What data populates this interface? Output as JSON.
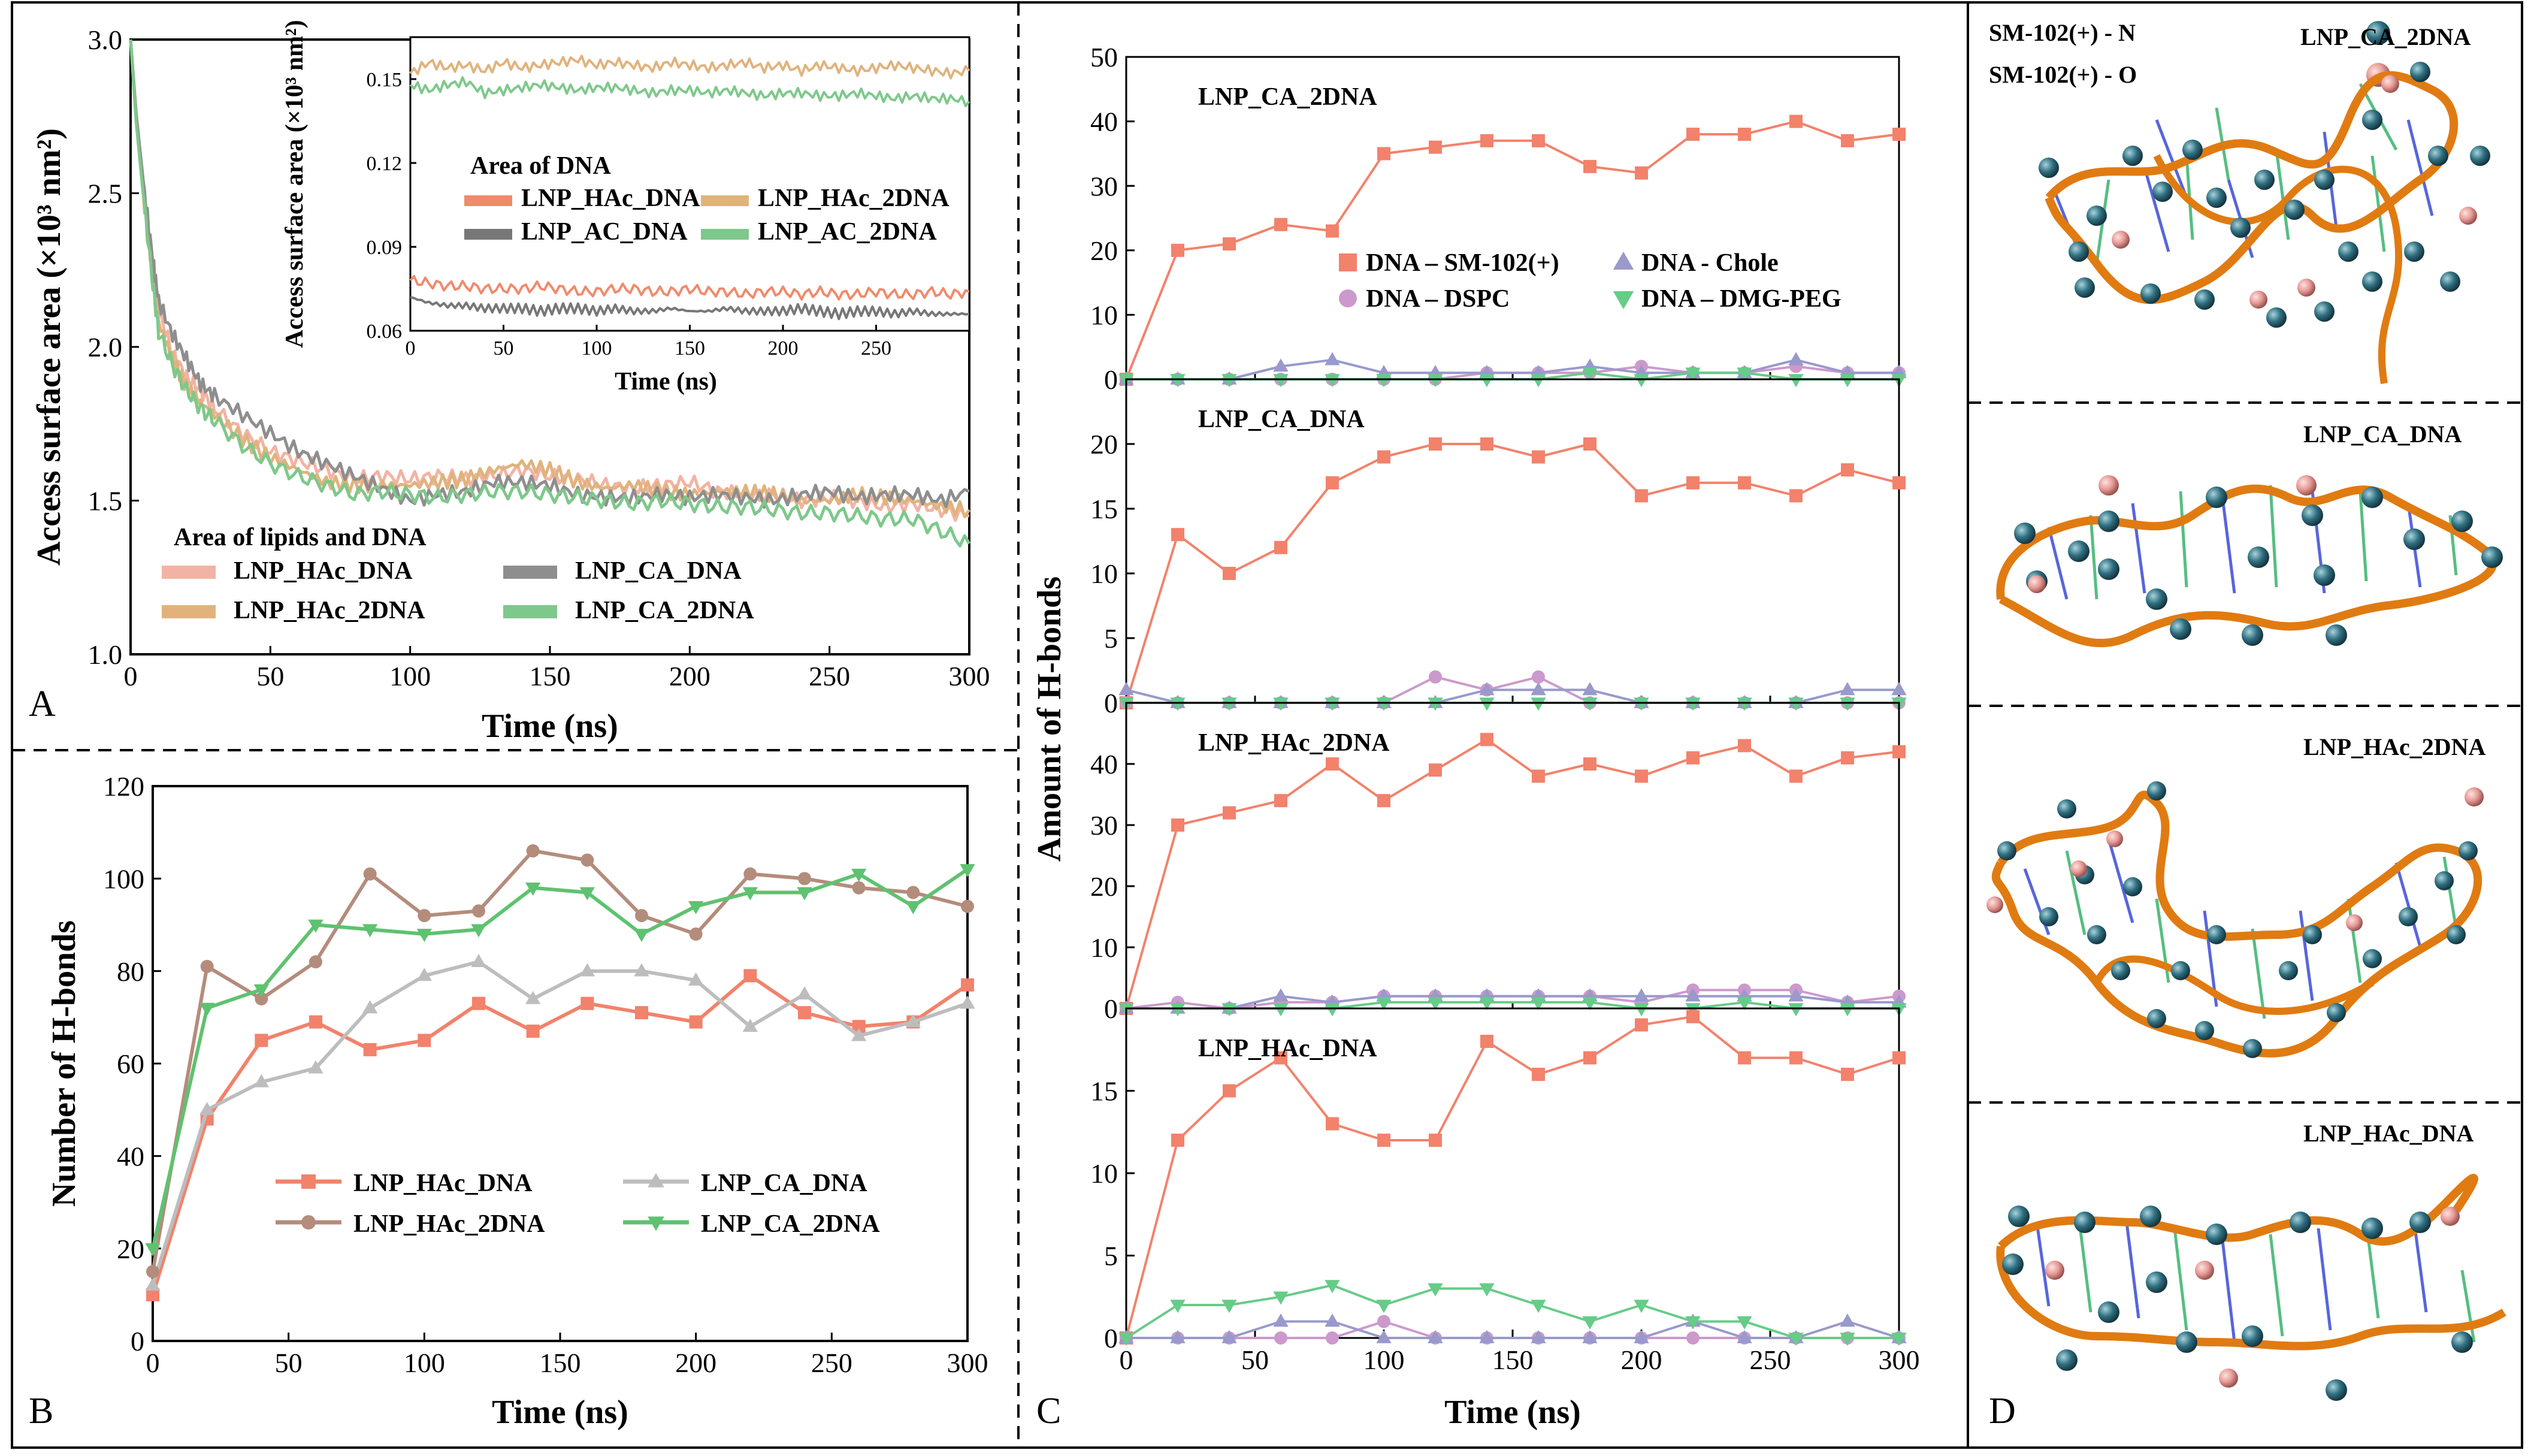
{
  "figure": {
    "panel_letters": [
      "A",
      "B",
      "C",
      "D"
    ]
  },
  "chart_data": [
    {
      "id": "A",
      "type": "line",
      "xlabel": "Time (ns)",
      "ylabel": "Access surface area (×10³ nm²)",
      "xlim": [
        0,
        300
      ],
      "ylim": [
        1.0,
        3.0
      ],
      "xticks": [
        0,
        50,
        100,
        150,
        200,
        250,
        300
      ],
      "yticks": [
        1.0,
        1.5,
        2.0,
        2.5,
        3.0
      ],
      "legend_title": "Area of lipids and DNA",
      "x": [
        0,
        2,
        5,
        8,
        10,
        15,
        20,
        25,
        30,
        40,
        50,
        60,
        70,
        80,
        90,
        100,
        110,
        120,
        130,
        140,
        150,
        160,
        170,
        180,
        190,
        200,
        210,
        220,
        230,
        240,
        250,
        260,
        270,
        280,
        290,
        300
      ],
      "series": [
        {
          "name": "LNP_HAc_DNA",
          "color": "#f2b3a4",
          "values": [
            3.0,
            2.75,
            2.48,
            2.25,
            2.12,
            1.98,
            1.9,
            1.86,
            1.8,
            1.72,
            1.66,
            1.63,
            1.6,
            1.57,
            1.58,
            1.57,
            1.58,
            1.57,
            1.58,
            1.6,
            1.58,
            1.57,
            1.55,
            1.54,
            1.55,
            1.56,
            1.53,
            1.52,
            1.52,
            1.5,
            1.51,
            1.5,
            1.48,
            1.49,
            1.47,
            1.45
          ]
        },
        {
          "name": "LNP_HAc_2DNA",
          "color": "#e0b37d",
          "values": [
            3.0,
            2.74,
            2.46,
            2.22,
            2.08,
            1.96,
            1.87,
            1.82,
            1.78,
            1.7,
            1.64,
            1.6,
            1.56,
            1.55,
            1.55,
            1.55,
            1.56,
            1.57,
            1.6,
            1.62,
            1.6,
            1.56,
            1.54,
            1.55,
            1.53,
            1.52,
            1.53,
            1.53,
            1.52,
            1.5,
            1.5,
            1.52,
            1.51,
            1.5,
            1.48,
            1.47
          ]
        },
        {
          "name": "LNP_CA_DNA",
          "color": "#8e8e8e",
          "values": [
            3.0,
            2.76,
            2.5,
            2.28,
            2.15,
            2.04,
            1.96,
            1.88,
            1.84,
            1.78,
            1.72,
            1.66,
            1.62,
            1.58,
            1.54,
            1.5,
            1.52,
            1.53,
            1.56,
            1.56,
            1.55,
            1.52,
            1.51,
            1.51,
            1.52,
            1.51,
            1.52,
            1.51,
            1.5,
            1.52,
            1.53,
            1.51,
            1.52,
            1.52,
            1.5,
            1.53
          ]
        },
        {
          "name": "LNP_CA_2DNA",
          "color": "#7ec88b",
          "values": [
            3.0,
            2.73,
            2.45,
            2.2,
            2.05,
            1.94,
            1.86,
            1.8,
            1.76,
            1.68,
            1.62,
            1.58,
            1.55,
            1.52,
            1.53,
            1.52,
            1.51,
            1.52,
            1.53,
            1.53,
            1.52,
            1.51,
            1.5,
            1.49,
            1.5,
            1.49,
            1.48,
            1.48,
            1.47,
            1.46,
            1.46,
            1.45,
            1.44,
            1.44,
            1.4,
            1.36
          ]
        }
      ],
      "inset": {
        "title": "Area of DNA",
        "xlabel": "Time (ns)",
        "ylabel": "Access surface area (×10³ nm²)",
        "xlim": [
          0,
          300
        ],
        "ylim": [
          0.06,
          0.165
        ],
        "xticks": [
          0,
          50,
          100,
          150,
          200,
          250
        ],
        "yticks": [
          0.06,
          0.09,
          0.12,
          0.15
        ],
        "x": [
          0,
          10,
          20,
          30,
          40,
          50,
          60,
          70,
          80,
          90,
          100,
          110,
          120,
          130,
          140,
          150,
          160,
          170,
          180,
          190,
          200,
          210,
          220,
          230,
          240,
          250,
          260,
          270,
          280,
          290,
          300
        ],
        "series": [
          {
            "name": "LNP_HAc_DNA",
            "color": "#f08a6c",
            "values": [
              0.078,
              0.077,
              0.076,
              0.076,
              0.075,
              0.075,
              0.075,
              0.076,
              0.075,
              0.074,
              0.074,
              0.075,
              0.075,
              0.074,
              0.074,
              0.075,
              0.074,
              0.074,
              0.073,
              0.074,
              0.074,
              0.073,
              0.074,
              0.073,
              0.073,
              0.074,
              0.073,
              0.073,
              0.074,
              0.073,
              0.074
            ]
          },
          {
            "name": "LNP_HAc_2DNA",
            "color": "#e0b37d",
            "values": [
              0.152,
              0.156,
              0.154,
              0.155,
              0.153,
              0.156,
              0.154,
              0.155,
              0.156,
              0.157,
              0.155,
              0.156,
              0.155,
              0.154,
              0.156,
              0.155,
              0.154,
              0.155,
              0.156,
              0.154,
              0.155,
              0.153,
              0.155,
              0.154,
              0.153,
              0.154,
              0.155,
              0.154,
              0.153,
              0.152,
              0.153
            ]
          },
          {
            "name": "LNP_AC_DNA",
            "color": "#777777",
            "values": [
              0.072,
              0.07,
              0.069,
              0.069,
              0.068,
              0.068,
              0.068,
              0.067,
              0.068,
              0.068,
              0.067,
              0.068,
              0.067,
              0.067,
              0.068,
              0.067,
              0.067,
              0.068,
              0.067,
              0.067,
              0.067,
              0.068,
              0.067,
              0.066,
              0.067,
              0.067,
              0.066,
              0.067,
              0.066,
              0.066,
              0.066
            ]
          },
          {
            "name": "LNP_AC_2DNA",
            "color": "#7ec88b",
            "values": [
              0.148,
              0.146,
              0.148,
              0.149,
              0.145,
              0.146,
              0.147,
              0.148,
              0.147,
              0.146,
              0.147,
              0.147,
              0.146,
              0.145,
              0.146,
              0.146,
              0.145,
              0.146,
              0.145,
              0.144,
              0.145,
              0.145,
              0.144,
              0.144,
              0.145,
              0.144,
              0.143,
              0.144,
              0.143,
              0.143,
              0.142
            ]
          }
        ]
      }
    },
    {
      "id": "B",
      "type": "line",
      "xlabel": "Time (ns)",
      "ylabel": "Number of H-bonds",
      "xlim": [
        0,
        300
      ],
      "ylim": [
        0,
        120
      ],
      "xticks": [
        0,
        50,
        100,
        150,
        200,
        250,
        300
      ],
      "yticks": [
        0,
        20,
        40,
        60,
        80,
        100,
        120
      ],
      "x": [
        0,
        20,
        40,
        60,
        80,
        100,
        120,
        140,
        160,
        180,
        200,
        220,
        240,
        260,
        280,
        300
      ],
      "series": [
        {
          "name": "LNP_HAc_DNA",
          "color": "#f2826b",
          "marker": "square",
          "values": [
            10,
            48,
            65,
            69,
            63,
            65,
            73,
            67,
            73,
            71,
            69,
            79,
            71,
            68,
            69,
            77
          ]
        },
        {
          "name": "LNP_CA_DNA",
          "color": "#bdbdbd",
          "marker": "triangle",
          "values": [
            12,
            50,
            56,
            59,
            72,
            79,
            82,
            74,
            80,
            80,
            78,
            68,
            75,
            66,
            69,
            73
          ]
        },
        {
          "name": "LNP_HAc_2DNA",
          "color": "#b48c7c",
          "marker": "circle",
          "values": [
            15,
            81,
            74,
            82,
            101,
            92,
            93,
            106,
            104,
            92,
            88,
            101,
            100,
            98,
            97,
            94
          ]
        },
        {
          "name": "LNP_CA_2DNA",
          "color": "#5ec270",
          "marker": "triangle-down",
          "values": [
            20,
            72,
            76,
            90,
            89,
            88,
            89,
            98,
            97,
            88,
            94,
            97,
            97,
            101,
            94,
            102
          ]
        }
      ]
    },
    {
      "id": "C",
      "type": "line",
      "xlabel": "Time (ns)",
      "ylabel": "Amount of H-bonds",
      "xlim": [
        0,
        300
      ],
      "xticks": [
        0,
        50,
        100,
        150,
        200,
        250,
        300
      ],
      "x": [
        0,
        20,
        40,
        60,
        80,
        100,
        120,
        140,
        160,
        180,
        200,
        220,
        240,
        260,
        280,
        300
      ],
      "legend": [
        "DNA – SM-102(+)",
        "DNA – DSPC",
        "DNA - Chole",
        "DNA – DMG-PEG"
      ],
      "colors": {
        "SM-102(+)": "#f2826b",
        "DSPC": "#cc99cc",
        "Chole": "#9999cc",
        "DMG-PEG": "#66cc88"
      },
      "subplots": [
        {
          "title": "LNP_CA_2DNA",
          "ylim": [
            0,
            50
          ],
          "yticks": [
            0,
            10,
            20,
            30,
            40,
            50
          ],
          "sm102": [
            0,
            20,
            21,
            24,
            23,
            35,
            36,
            37,
            37,
            33,
            32,
            38,
            38,
            40,
            37,
            38
          ],
          "dspc": [
            0,
            0,
            0,
            0,
            0,
            0,
            0,
            1,
            1,
            1,
            2,
            1,
            1,
            2,
            1,
            1
          ],
          "chole": [
            0,
            0,
            0,
            2,
            3,
            1,
            1,
            1,
            1,
            2,
            1,
            1,
            1,
            3,
            1,
            1
          ],
          "dmgpeg": [
            0,
            0,
            0,
            0,
            0,
            0,
            0,
            0,
            0,
            1,
            0,
            1,
            1,
            0,
            0,
            0
          ]
        },
        {
          "title": "LNP_CA_DNA",
          "ylim": [
            0,
            25
          ],
          "yticks": [
            0,
            5,
            10,
            15,
            20
          ],
          "sm102": [
            0,
            13,
            10,
            12,
            17,
            19,
            20,
            20,
            19,
            20,
            16,
            17,
            17,
            16,
            18,
            17
          ],
          "dspc": [
            0,
            0,
            0,
            0,
            0,
            0,
            2,
            1,
            2,
            0,
            0,
            0,
            0,
            0,
            0,
            0
          ],
          "chole": [
            1,
            0,
            0,
            0,
            0,
            0,
            0,
            1,
            1,
            1,
            0,
            0,
            0,
            0,
            1,
            1
          ],
          "dmgpeg": [
            0,
            0,
            0,
            0,
            0,
            0,
            0,
            0,
            0,
            0,
            0,
            0,
            0,
            0,
            0,
            0
          ]
        },
        {
          "title": "LNP_HAc_2DNA",
          "ylim": [
            0,
            50
          ],
          "yticks": [
            0,
            10,
            20,
            30,
            40
          ],
          "sm102": [
            0,
            30,
            32,
            34,
            40,
            34,
            39,
            44,
            38,
            40,
            38,
            41,
            43,
            38,
            41,
            42
          ],
          "dspc": [
            0,
            1,
            0,
            1,
            1,
            2,
            2,
            2,
            2,
            2,
            1,
            3,
            3,
            3,
            1,
            2
          ],
          "chole": [
            0,
            0,
            0,
            2,
            1,
            2,
            2,
            2,
            2,
            2,
            2,
            2,
            2,
            2,
            1,
            1
          ],
          "dmgpeg": [
            0,
            0,
            0,
            0,
            0,
            1,
            1,
            1,
            1,
            1,
            0,
            0,
            1,
            0,
            0,
            0
          ]
        },
        {
          "title": "LNP_HAc_DNA",
          "ylim": [
            0,
            20
          ],
          "yticks": [
            0,
            5,
            10,
            15
          ],
          "sm102": [
            0,
            12,
            15,
            17,
            13,
            12,
            12,
            18,
            16,
            17,
            19,
            19.5,
            17,
            17,
            16,
            17
          ],
          "dspc": [
            0,
            0,
            0,
            0,
            0,
            1,
            0,
            0,
            0,
            0,
            0,
            0,
            0,
            0,
            0,
            0
          ],
          "chole": [
            0,
            0,
            0,
            1,
            1,
            0,
            0,
            0,
            0,
            0,
            0,
            1,
            0,
            0,
            1,
            0
          ],
          "dmgpeg": [
            0,
            2,
            2,
            2.5,
            3.2,
            2,
            3,
            3,
            2,
            1,
            2,
            1,
            1,
            0,
            0,
            0
          ]
        }
      ]
    }
  ],
  "panel_D": {
    "legend": [
      "SM-102(+) - N",
      "SM-102(+) - O"
    ],
    "titles": [
      "LNP_CA_2DNA",
      "LNP_CA_DNA",
      "LNP_HAc_2DNA",
      "LNP_HAc_DNA"
    ],
    "colors": {
      "N": "#2f6f80",
      "O": "#e79a96",
      "backbone": "#e07b12"
    }
  }
}
